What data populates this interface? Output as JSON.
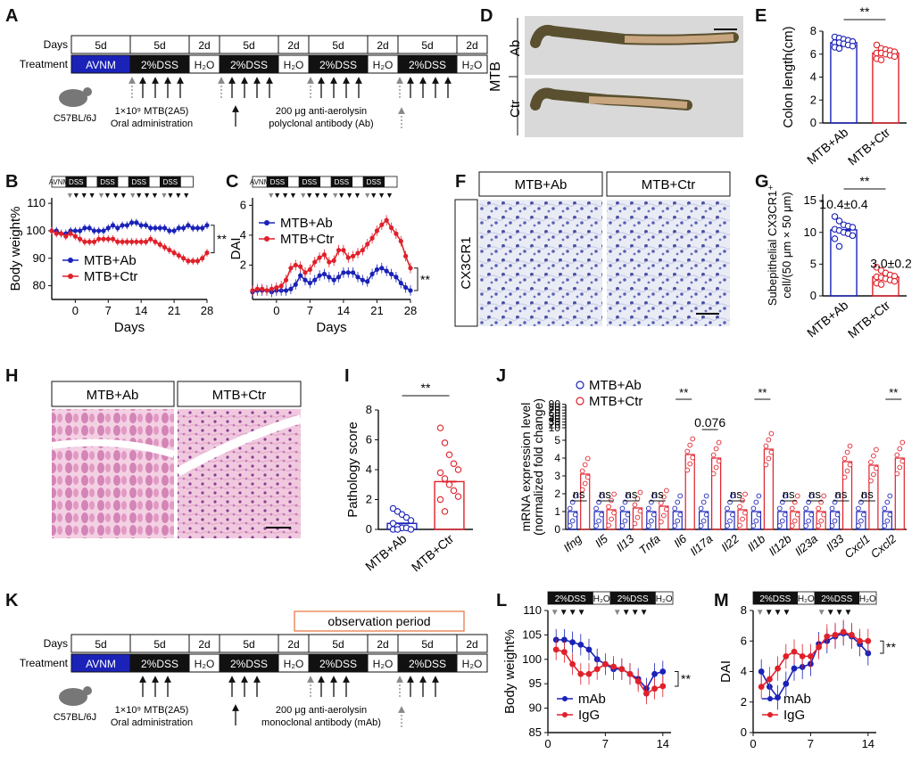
{
  "panels": [
    "A",
    "B",
    "C",
    "D",
    "E",
    "F",
    "G",
    "H",
    "I",
    "J",
    "K",
    "L",
    "M"
  ],
  "panel_a": {
    "days_label": "Days",
    "treatment_label": "Treatment",
    "durations": [
      "5d",
      "5d",
      "2d",
      "5d",
      "2d",
      "5d",
      "2d",
      "5d",
      "2d"
    ],
    "treatments": [
      "AVNM",
      "2%DSS",
      "H₂O",
      "2%DSS",
      "H₂O",
      "2%DSS",
      "H₂O",
      "2%DSS",
      "H₂O"
    ],
    "mouse": "C57BL/6J",
    "mtb_line1": "1×10⁹ MTB(2A5)",
    "mtb_line2": "Oral administration",
    "ab_line1": "200 μg anti-aerolysin",
    "ab_line2": "polyclonal antibody (Ab)"
  },
  "panel_d": {
    "group": "MTB",
    "row1": "Ab",
    "row2": "Ctr"
  },
  "panel_f": {
    "col1": "MTB+Ab",
    "col2": "MTB+Ctr",
    "row": "CX3CR1"
  },
  "panel_h": {
    "col1": "MTB+Ab",
    "col2": "MTB+Ctr"
  },
  "panel_k": {
    "observation": "observation period",
    "days_label": "Days",
    "treatment_label": "Treatment",
    "durations": [
      "5d",
      "5d",
      "2d",
      "5d",
      "2d",
      "5d",
      "2d",
      "5d",
      "2d"
    ],
    "treatments": [
      "AVNM",
      "2%DSS",
      "H₂O",
      "2%DSS",
      "H₂O",
      "2%DSS",
      "H₂O",
      "2%DSS",
      "H₂O"
    ],
    "mouse": "C57BL/6J",
    "mtb_line1": "1×10⁹ MTB(2A5)",
    "mtb_line2": "Oral administration",
    "ab_line1": "200 μg anti-aerolysin",
    "ab_line2": "monoclonal antibody (mAb)"
  },
  "strip_labels": {
    "avnm": "AVNM",
    "dss": "DSS",
    "dss2": "2%DSS",
    "h2o": "H₂O"
  },
  "chart_data": [
    {
      "id": "B",
      "type": "line",
      "xlabel": "Days",
      "ylabel": "Body weight%",
      "xlim": [
        -5,
        28
      ],
      "ylim": [
        75,
        112
      ],
      "xticks": [
        0,
        7,
        14,
        21,
        28
      ],
      "yticks": [
        80,
        90,
        100,
        110
      ],
      "significance": "**",
      "series": [
        {
          "name": "MTB+Ab",
          "color": "#1a22b8",
          "x": [
            -5,
            -4,
            -3,
            -2,
            -1,
            0,
            1,
            2,
            3,
            4,
            5,
            6,
            7,
            8,
            9,
            10,
            11,
            12,
            13,
            14,
            15,
            16,
            17,
            18,
            19,
            20,
            21,
            22,
            23,
            24,
            25,
            26,
            27,
            28
          ],
          "y": [
            100,
            100,
            99,
            99,
            100,
            100,
            100,
            101,
            101,
            100,
            100,
            100,
            101,
            102,
            101,
            102,
            102,
            103,
            103,
            102,
            102,
            101,
            101,
            101,
            101,
            100,
            100,
            101,
            101,
            102,
            101,
            101,
            101,
            102
          ]
        },
        {
          "name": "MTB+Ctr",
          "color": "#e0202a",
          "x": [
            -5,
            -4,
            -3,
            -2,
            -1,
            0,
            1,
            2,
            3,
            4,
            5,
            6,
            7,
            8,
            9,
            10,
            11,
            12,
            13,
            14,
            15,
            16,
            17,
            18,
            19,
            20,
            21,
            22,
            23,
            24,
            25,
            26,
            27,
            28
          ],
          "y": [
            100,
            99,
            99,
            98,
            99,
            98,
            97,
            96,
            96,
            96,
            97,
            97,
            97,
            97,
            96,
            96,
            96,
            96,
            96,
            96,
            96,
            97,
            96,
            95,
            94,
            93,
            92,
            91,
            90,
            89,
            89,
            89,
            90,
            92
          ]
        }
      ]
    },
    {
      "id": "C",
      "type": "line",
      "xlabel": "Days",
      "ylabel": "DAI",
      "xlim": [
        -5,
        28
      ],
      "ylim": [
        -0.3,
        6.5
      ],
      "xticks": [
        0,
        7,
        14,
        21,
        28
      ],
      "yticks": [
        2,
        4,
        6
      ],
      "significance": "**",
      "series": [
        {
          "name": "MTB+Ab",
          "color": "#1a22b8",
          "x": [
            -5,
            -4,
            -3,
            -2,
            -1,
            0,
            1,
            2,
            3,
            4,
            5,
            6,
            7,
            8,
            9,
            10,
            11,
            12,
            13,
            14,
            15,
            16,
            17,
            18,
            19,
            20,
            21,
            22,
            23,
            24,
            25,
            26,
            27,
            28
          ],
          "y": [
            0.2,
            0.3,
            0.3,
            0.3,
            0.2,
            0.3,
            0.3,
            0.3,
            0.4,
            0.7,
            1.3,
            1.0,
            0.8,
            1.0,
            1.3,
            1.4,
            1.2,
            1.0,
            1.2,
            1.5,
            1.5,
            1.5,
            1.2,
            1.0,
            0.9,
            1.4,
            1.7,
            1.8,
            1.6,
            1.4,
            1.2,
            0.8,
            0.5,
            0.3
          ]
        },
        {
          "name": "MTB+Ctr",
          "color": "#e0202a",
          "x": [
            -5,
            -4,
            -3,
            -2,
            -1,
            0,
            1,
            2,
            3,
            4,
            5,
            6,
            7,
            8,
            9,
            10,
            11,
            12,
            13,
            14,
            15,
            16,
            17,
            18,
            19,
            20,
            21,
            22,
            23,
            24,
            25,
            26,
            27,
            28
          ],
          "y": [
            0.3,
            0.4,
            0.4,
            0.3,
            0.4,
            0.5,
            0.6,
            1.0,
            1.8,
            2.0,
            1.9,
            1.5,
            1.7,
            2.2,
            2.5,
            2.7,
            2.2,
            2.3,
            3.0,
            3.0,
            2.5,
            2.6,
            2.8,
            3.0,
            3.4,
            3.8,
            4.3,
            4.7,
            5.0,
            4.5,
            4.1,
            3.6,
            2.6,
            1.8
          ]
        }
      ]
    },
    {
      "id": "E",
      "type": "bar",
      "ylabel": "Colon length(cm)",
      "categories": [
        "MTB+Ab",
        "MTB+Ctr"
      ],
      "values": [
        7.0,
        6.1
      ],
      "ylim": [
        0,
        8
      ],
      "yticks": [
        0,
        2,
        4,
        6,
        8
      ],
      "significance": "**",
      "points": [
        [
          7.5,
          7.4,
          7.3,
          7.2,
          7.1,
          7.0,
          7.0,
          6.9,
          6.8,
          6.7,
          6.6,
          6.5
        ],
        [
          6.8,
          6.5,
          6.4,
          6.3,
          6.2,
          6.1,
          6.1,
          6.0,
          5.9,
          5.8,
          5.6,
          5.5
        ]
      ]
    },
    {
      "id": "G",
      "type": "bar",
      "ylabel": "Subepithelial CX3CR1⁺ cell/(50 μm × 50 μm)",
      "categories": [
        "MTB+Ab",
        "MTB+Ctr"
      ],
      "values": [
        10.4,
        3.0
      ],
      "labels": [
        "10.4±0.4",
        "3.0±0.2"
      ],
      "ylim": [
        0,
        16
      ],
      "yticks": [
        0,
        5,
        10,
        15
      ],
      "significance": "**",
      "points": [
        [
          12.5,
          11.8,
          11.2,
          11.0,
          10.8,
          10.5,
          10.3,
          10.0,
          9.8,
          9.5,
          9.0,
          7.8
        ],
        [
          4.5,
          4.0,
          3.6,
          3.3,
          3.1,
          3.0,
          2.9,
          2.7,
          2.5,
          2.3,
          2.0,
          1.8
        ]
      ]
    },
    {
      "id": "I",
      "type": "bar",
      "ylabel": "Pathology score",
      "categories": [
        "MTB+Ab",
        "MTB+Ctr"
      ],
      "values": [
        0.4,
        3.2
      ],
      "ylim": [
        0,
        8
      ],
      "yticks": [
        0,
        2,
        4,
        6,
        8
      ],
      "significance": "**",
      "points": [
        [
          1.4,
          1.2,
          1.0,
          0.8,
          0.6,
          0.4,
          0.2,
          0.1,
          0.1,
          0.0,
          0.0,
          0.0
        ],
        [
          6.8,
          5.8,
          5.0,
          4.4,
          4.0,
          3.8,
          3.4,
          3.0,
          2.6,
          2.2,
          2.0,
          1.2
        ]
      ]
    },
    {
      "id": "J",
      "type": "bar",
      "ylabel": "mRNA expression level",
      "ylabel2": "(normalized fold change)",
      "categories": [
        "Ifng",
        "Il5",
        "Il13",
        "Tnfa",
        "Il6",
        "Il17a",
        "Il22",
        "Il1b",
        "Il12b",
        "Il23a",
        "Il33",
        "Cxcl1",
        "Cxcl2"
      ],
      "yticks": [
        0,
        1,
        2,
        3,
        4,
        5,
        10,
        20,
        30,
        40,
        50,
        60,
        70,
        80,
        90
      ],
      "series": [
        {
          "name": "MTB+Ab",
          "color": "#1a22b8",
          "values": [
            1.0,
            1.0,
            1.0,
            1.0,
            1.0,
            1.0,
            1.0,
            1.0,
            1.0,
            1.0,
            1.0,
            1.0,
            1.0
          ]
        },
        {
          "name": "MTB+Ctr",
          "color": "#e0202a",
          "values": [
            3.1,
            1.1,
            1.2,
            1.3,
            4.2,
            4.0,
            1.1,
            4.5,
            1.0,
            1.0,
            3.8,
            3.6,
            4.0
          ]
        }
      ],
      "significance": [
        "ns",
        "ns",
        "ns",
        "ns",
        "**",
        "0.076",
        "ns",
        "**",
        "ns",
        "ns",
        "ns",
        "ns",
        "**"
      ]
    },
    {
      "id": "L",
      "type": "line",
      "ylabel": "Body weight%",
      "xlim": [
        0,
        15
      ],
      "ylim": [
        85,
        110
      ],
      "xticks": [
        0,
        7,
        14
      ],
      "yticks": [
        85,
        90,
        95,
        100,
        105,
        110
      ],
      "significance": "**",
      "series": [
        {
          "name": "mAb",
          "color": "#1a22b8",
          "x": [
            1,
            2,
            3,
            4,
            5,
            6,
            7,
            8,
            9,
            10,
            11,
            12,
            13,
            14
          ],
          "y": [
            104,
            104,
            103.5,
            103,
            102,
            100,
            99,
            98,
            98,
            97,
            96,
            94,
            97,
            97.5
          ]
        },
        {
          "name": "IgG",
          "color": "#e0202a",
          "x": [
            1,
            2,
            3,
            4,
            5,
            6,
            7,
            8,
            9,
            10,
            11,
            12,
            13,
            14
          ],
          "y": [
            102,
            101.5,
            99,
            97,
            97,
            98,
            99,
            98.5,
            98,
            97,
            95.5,
            93,
            94,
            94.5
          ]
        }
      ]
    },
    {
      "id": "M",
      "type": "line",
      "ylabel": "DAI",
      "xlim": [
        0,
        15
      ],
      "ylim": [
        0,
        8
      ],
      "xticks": [
        0,
        7,
        14
      ],
      "yticks": [
        0,
        2,
        4,
        6,
        8
      ],
      "significance": "**",
      "series": [
        {
          "name": "mAb",
          "color": "#1a22b8",
          "x": [
            1,
            2,
            3,
            4,
            5,
            6,
            7,
            8,
            9,
            10,
            11,
            12,
            13,
            14
          ],
          "y": [
            4.0,
            3.0,
            2.3,
            3.2,
            4.2,
            4.3,
            4.5,
            5.8,
            6.0,
            6.3,
            6.5,
            6.3,
            5.8,
            5.2
          ]
        },
        {
          "name": "IgG",
          "color": "#e0202a",
          "x": [
            1,
            2,
            3,
            4,
            5,
            6,
            7,
            8,
            9,
            10,
            11,
            12,
            13,
            14
          ],
          "y": [
            3.0,
            3.5,
            4.2,
            5.0,
            5.3,
            5.0,
            5.0,
            5.6,
            6.3,
            6.4,
            6.6,
            6.4,
            6.0,
            6.0
          ]
        }
      ]
    }
  ]
}
